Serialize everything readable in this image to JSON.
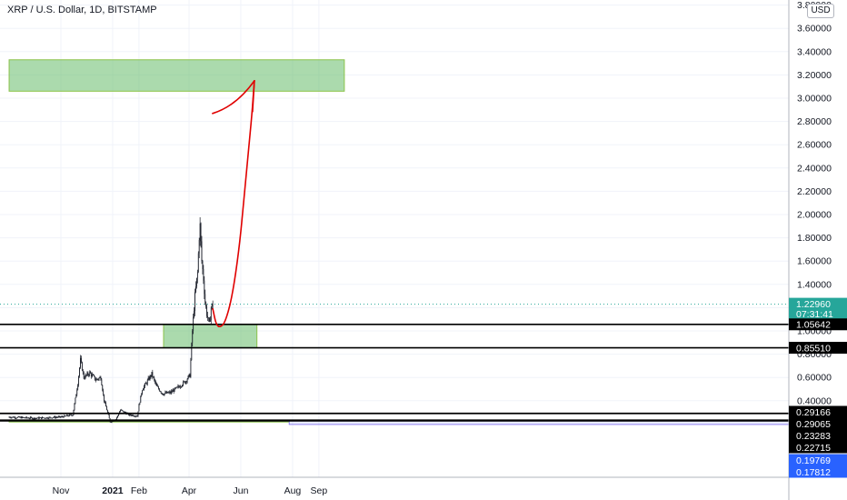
{
  "header": {
    "title": "XRP / U.S. Dollar, 1D, BITSTAMP",
    "currency_button": "USD"
  },
  "chart_data": {
    "type": "candlestick",
    "title": "XRP / U.S. Dollar, 1D, BITSTAMP",
    "x_ticks": [
      "Nov",
      "2021",
      "Feb",
      "Apr",
      "Jun",
      "Aug",
      "Sep"
    ],
    "y_ticks": [
      "0.40000",
      "0.60000",
      "0.80000",
      "1.00000",
      "1.20000",
      "1.40000",
      "1.60000",
      "1.80000",
      "2.00000",
      "2.20000",
      "2.40000",
      "2.60000",
      "2.80000",
      "3.00000",
      "3.20000",
      "3.40000",
      "3.60000",
      "3.80000"
    ],
    "ylim": [
      0.18,
      3.8
    ],
    "grid": true,
    "price_series": [
      {
        "date": "2020-09-01",
        "price": 0.26
      },
      {
        "date": "2020-10-01",
        "price": 0.25
      },
      {
        "date": "2020-11-01",
        "price": 0.26
      },
      {
        "date": "2020-11-15",
        "price": 0.28
      },
      {
        "date": "2020-11-21",
        "price": 0.55
      },
      {
        "date": "2020-11-24",
        "price": 0.75
      },
      {
        "date": "2020-11-28",
        "price": 0.6
      },
      {
        "date": "2020-12-05",
        "price": 0.64
      },
      {
        "date": "2020-12-12",
        "price": 0.58
      },
      {
        "date": "2020-12-18",
        "price": 0.6
      },
      {
        "date": "2020-12-22",
        "price": 0.4
      },
      {
        "date": "2020-12-29",
        "price": 0.22
      },
      {
        "date": "2021-01-05",
        "price": 0.24
      },
      {
        "date": "2021-01-10",
        "price": 0.32
      },
      {
        "date": "2021-01-20",
        "price": 0.28
      },
      {
        "date": "2021-01-30",
        "price": 0.27
      },
      {
        "date": "2021-02-01",
        "price": 0.36
      },
      {
        "date": "2021-02-05",
        "price": 0.5
      },
      {
        "date": "2021-02-12",
        "price": 0.58
      },
      {
        "date": "2021-02-16",
        "price": 0.63
      },
      {
        "date": "2021-02-22",
        "price": 0.52
      },
      {
        "date": "2021-03-01",
        "price": 0.46
      },
      {
        "date": "2021-03-10",
        "price": 0.47
      },
      {
        "date": "2021-03-20",
        "price": 0.52
      },
      {
        "date": "2021-03-28",
        "price": 0.57
      },
      {
        "date": "2021-04-02",
        "price": 0.62
      },
      {
        "date": "2021-04-05",
        "price": 1.0
      },
      {
        "date": "2021-04-08",
        "price": 1.3
      },
      {
        "date": "2021-04-11",
        "price": 1.5
      },
      {
        "date": "2021-04-13",
        "price": 1.82
      },
      {
        "date": "2021-04-14",
        "price": 1.9
      },
      {
        "date": "2021-04-16",
        "price": 1.6
      },
      {
        "date": "2021-04-18",
        "price": 1.45
      },
      {
        "date": "2021-04-20",
        "price": 1.25
      },
      {
        "date": "2021-04-22",
        "price": 1.15
      },
      {
        "date": "2021-04-25",
        "price": 1.05
      },
      {
        "date": "2021-04-27",
        "price": 1.2
      },
      {
        "date": "2021-04-29",
        "price": 1.23
      }
    ],
    "zones": [
      {
        "low": 3.06,
        "high": 3.33,
        "from": "2020-09-01",
        "to": "2021-10-01"
      },
      {
        "low": 0.8551,
        "high": 1.05642,
        "from": "2021-03-02",
        "to": "2021-06-20"
      },
      {
        "low": 0.22715,
        "high": 0.23283,
        "from": "2020-09-01",
        "to": "2021-07-28"
      }
    ],
    "horizontal_lines": [
      {
        "price": 1.05642,
        "label": "1.05642"
      },
      {
        "price": 0.8551,
        "label": "0.85510"
      },
      {
        "price": 0.29166,
        "label": "0.29166"
      },
      {
        "price": 0.29065,
        "label": "0.29065"
      },
      {
        "price": 0.23283,
        "label": "0.23283"
      },
      {
        "price": 0.22715,
        "label": "0.22715"
      },
      {
        "price": 0.19769,
        "label": "0.19769"
      },
      {
        "price": 0.17812,
        "label": "0.17812"
      }
    ],
    "last_price": {
      "price": 1.2296,
      "label": "1.22960",
      "countdown": "07:31:41"
    },
    "projection_path": [
      {
        "date": "2021-04-29",
        "price": 1.19
      },
      {
        "date": "2021-05-03",
        "price": 1.05
      },
      {
        "date": "2021-05-08",
        "price": 1.03
      },
      {
        "date": "2021-05-14",
        "price": 1.08
      },
      {
        "date": "2021-05-22",
        "price": 1.3
      },
      {
        "date": "2021-05-30",
        "price": 1.7
      },
      {
        "date": "2021-06-05",
        "price": 2.15
      },
      {
        "date": "2021-06-10",
        "price": 2.55
      },
      {
        "date": "2021-06-14",
        "price": 2.85
      },
      {
        "date": "2021-06-17",
        "price": 3.15
      }
    ]
  }
}
